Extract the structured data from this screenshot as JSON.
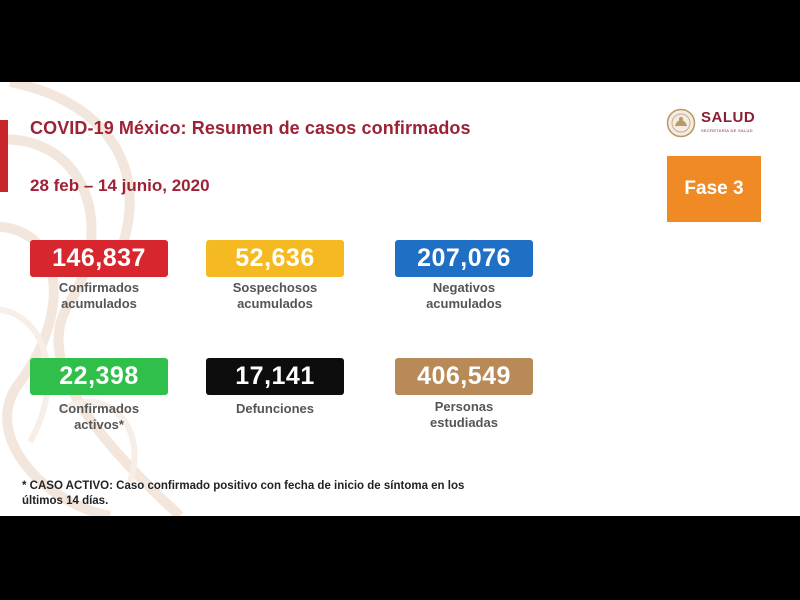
{
  "title": "COVID-19 México: Resumen de casos confirmados",
  "date_range": "28 feb – 14 junio, 2020",
  "logo": {
    "brand": "SALUD",
    "subtitle": "SECRETARÍA DE SALUD"
  },
  "phase_badge": "Fase 3",
  "stats": [
    {
      "value": "146,837",
      "label_line1": "Confirmados",
      "label_line2": "acumulados",
      "color": "#d7262e"
    },
    {
      "value": "52,636",
      "label_line1": "Sospechosos",
      "label_line2": "acumulados",
      "color": "#f5b921"
    },
    {
      "value": "207,076",
      "label_line1": "Negativos",
      "label_line2": "acumulados",
      "color": "#1f6fc4"
    },
    {
      "value": "22,398",
      "label_line1": "Confirmados",
      "label_line2": "activos*",
      "color": "#2fbf4a"
    },
    {
      "value": "17,141",
      "label_line1": "Defunciones",
      "label_line2": "",
      "color": "#0d0d0d"
    },
    {
      "value": "406,549",
      "label_line1": "Personas",
      "label_line2": "estudiadas",
      "color": "#b88a57"
    }
  ],
  "footnote_line1": "* CASO ACTIVO: Caso confirmado positivo con fecha de inicio de síntoma en los",
  "footnote_line2": "últimos 14 días.",
  "colors": {
    "title": "#9e2236",
    "accent": "#c8262a",
    "phase": "#f08a24"
  }
}
